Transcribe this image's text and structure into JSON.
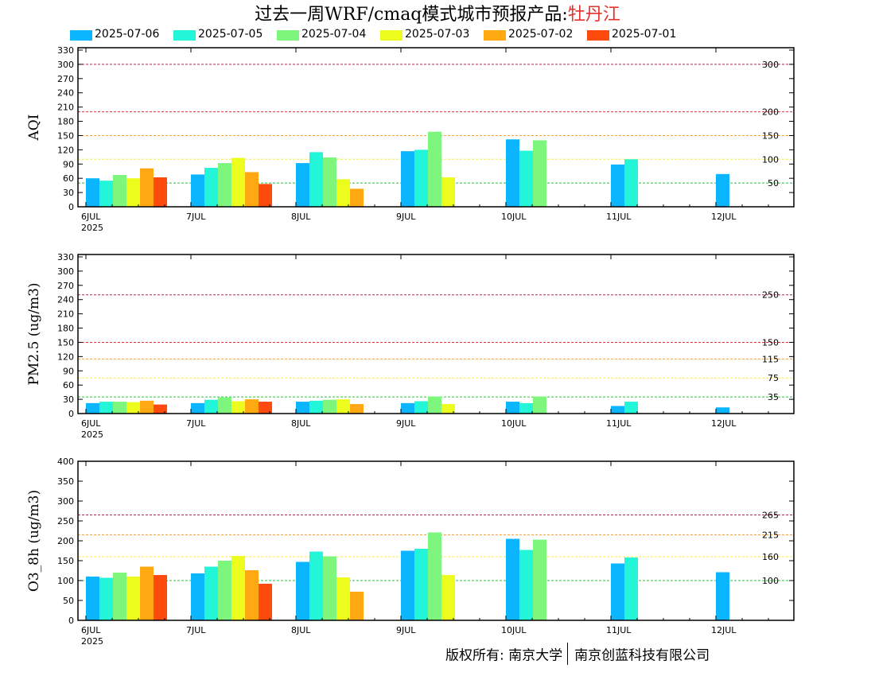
{
  "title": {
    "prefix": "过去一周WRF/cmaq模式城市预报产品:",
    "city": "牡丹江"
  },
  "colors": {
    "series": [
      "#0bb6ff",
      "#22f5d8",
      "#7ef57c",
      "#ecfc1c",
      "#ffa812",
      "#ff4a0d"
    ],
    "grid_lines": {
      "dark_red": "#b0245a",
      "red": "#e23030",
      "orange": "#ff9f33",
      "yellow": "#f0f040",
      "green": "#28c43c"
    }
  },
  "legend": [
    {
      "label": "2025-07-06"
    },
    {
      "label": "2025-07-05"
    },
    {
      "label": "2025-07-04"
    },
    {
      "label": "2025-07-03"
    },
    {
      "label": "2025-07-02"
    },
    {
      "label": "2025-07-01"
    }
  ],
  "chart_data": [
    {
      "type": "bar",
      "ylabel": "AQI",
      "ylim": [
        0,
        335
      ],
      "yticks": [
        0,
        30,
        60,
        90,
        120,
        150,
        180,
        210,
        240,
        270,
        300,
        330
      ],
      "categories": [
        "6JUL",
        "7JUL",
        "8JUL",
        "9JUL",
        "10JUL",
        "11JUL",
        "12JUL"
      ],
      "first_category_sub": "2025",
      "series": [
        {
          "name": "2025-07-06",
          "values": [
            60,
            68,
            92,
            117,
            142,
            89,
            69
          ]
        },
        {
          "name": "2025-07-05",
          "values": [
            55,
            82,
            115,
            120,
            118,
            100,
            null
          ]
        },
        {
          "name": "2025-07-04",
          "values": [
            67,
            92,
            104,
            158,
            140,
            null,
            null
          ]
        },
        {
          "name": "2025-07-03",
          "values": [
            60,
            103,
            58,
            62,
            null,
            null,
            null
          ]
        },
        {
          "name": "2025-07-02",
          "values": [
            81,
            73,
            38,
            null,
            null,
            null,
            null
          ]
        },
        {
          "name": "2025-07-01",
          "values": [
            62,
            48,
            null,
            null,
            null,
            null,
            null
          ]
        }
      ],
      "thresholds": [
        {
          "value": 300,
          "label": "300",
          "color": "dark_red"
        },
        {
          "value": 200,
          "label": "200",
          "color": "red"
        },
        {
          "value": 150,
          "label": "150",
          "color": "orange"
        },
        {
          "value": 100,
          "label": "100",
          "color": "yellow"
        },
        {
          "value": 50,
          "label": "50",
          "color": "green"
        }
      ]
    },
    {
      "type": "bar",
      "ylabel": "PM2.5 (ug/m3)",
      "ylim": [
        0,
        335
      ],
      "yticks": [
        0,
        30,
        60,
        90,
        120,
        150,
        180,
        210,
        240,
        270,
        300,
        330
      ],
      "categories": [
        "6JUL",
        "7JUL",
        "8JUL",
        "9JUL",
        "10JUL",
        "11JUL",
        "12JUL"
      ],
      "first_category_sub": "2025",
      "series": [
        {
          "name": "2025-07-06",
          "values": [
            22,
            22,
            25,
            22,
            25,
            16,
            13
          ]
        },
        {
          "name": "2025-07-05",
          "values": [
            25,
            29,
            27,
            26,
            22,
            25,
            null
          ]
        },
        {
          "name": "2025-07-04",
          "values": [
            25,
            34,
            29,
            36,
            36,
            null,
            null
          ]
        },
        {
          "name": "2025-07-03",
          "values": [
            24,
            26,
            30,
            20,
            null,
            null,
            null
          ]
        },
        {
          "name": "2025-07-02",
          "values": [
            27,
            30,
            20,
            null,
            null,
            null,
            null
          ]
        },
        {
          "name": "2025-07-01",
          "values": [
            19,
            25,
            null,
            null,
            null,
            null,
            null
          ]
        }
      ],
      "thresholds": [
        {
          "value": 250,
          "label": "250",
          "color": "dark_red"
        },
        {
          "value": 150,
          "label": "150",
          "color": "red"
        },
        {
          "value": 115,
          "label": "115",
          "color": "orange"
        },
        {
          "value": 75,
          "label": "75",
          "color": "yellow"
        },
        {
          "value": 35,
          "label": "35",
          "color": "green"
        }
      ]
    },
    {
      "type": "bar",
      "ylabel": "O3_8h (ug/m3)",
      "ylim": [
        0,
        400
      ],
      "yticks": [
        0,
        50,
        100,
        150,
        200,
        250,
        300,
        350,
        400
      ],
      "categories": [
        "6JUL",
        "7JUL",
        "8JUL",
        "9JUL",
        "10JUL",
        "11JUL",
        "12JUL"
      ],
      "first_category_sub": "2025",
      "series": [
        {
          "name": "2025-07-06",
          "values": [
            110,
            118,
            147,
            175,
            205,
            143,
            121
          ]
        },
        {
          "name": "2025-07-05",
          "values": [
            107,
            135,
            173,
            180,
            177,
            158,
            null
          ]
        },
        {
          "name": "2025-07-04",
          "values": [
            120,
            150,
            161,
            221,
            203,
            null,
            null
          ]
        },
        {
          "name": "2025-07-03",
          "values": [
            110,
            162,
            108,
            114,
            null,
            null,
            null
          ]
        },
        {
          "name": "2025-07-02",
          "values": [
            135,
            126,
            72,
            null,
            null,
            null,
            null
          ]
        },
        {
          "name": "2025-07-01",
          "values": [
            114,
            92,
            null,
            null,
            null,
            null,
            null
          ]
        }
      ],
      "thresholds": [
        {
          "value": 265,
          "label": "265",
          "color": "dark_red"
        },
        {
          "value": 215,
          "label": "215",
          "color": "orange"
        },
        {
          "value": 160,
          "label": "160",
          "color": "yellow"
        },
        {
          "value": 100,
          "label": "100",
          "color": "green"
        }
      ]
    }
  ],
  "footer": {
    "owner": "版权所有: 南京大学",
    "company": "南京创蓝科技有限公司"
  }
}
